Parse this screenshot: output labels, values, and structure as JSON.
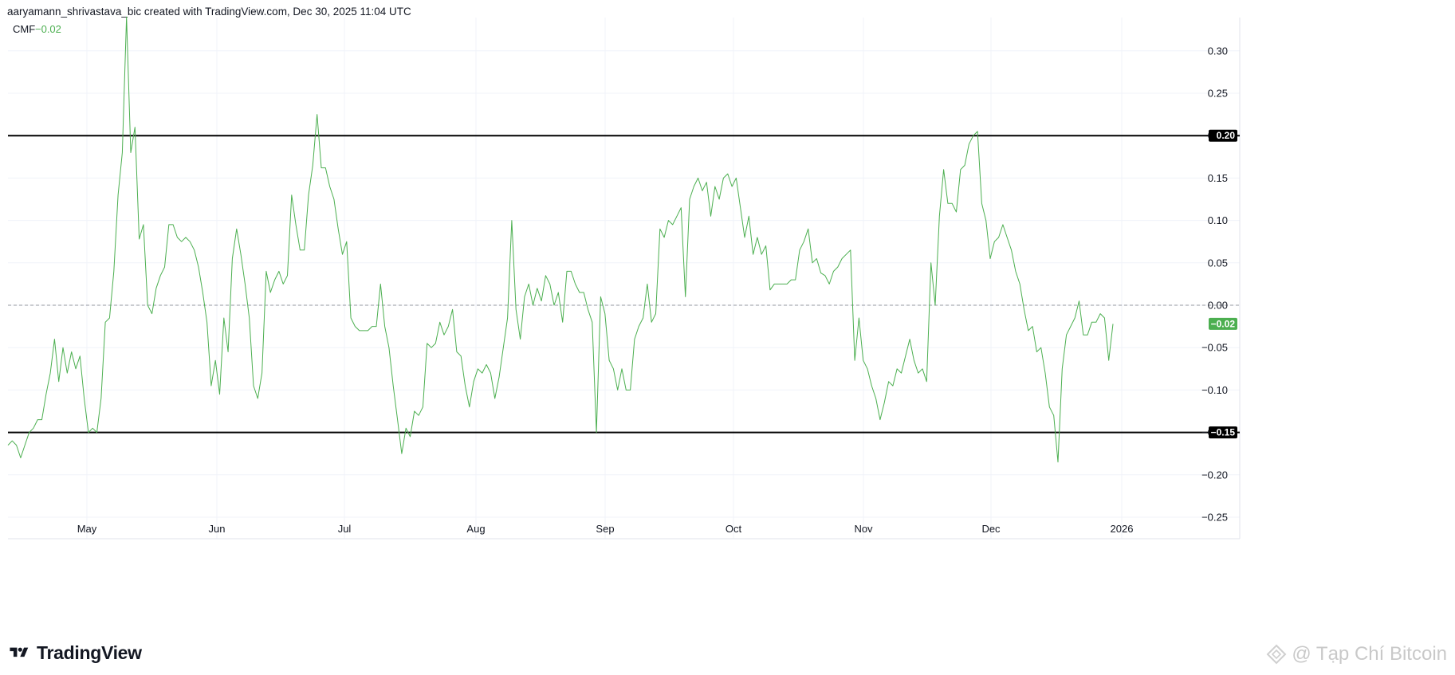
{
  "header": {
    "credit": "aaryamann_shrivastava_bic created with TradingView.com, Dec 30, 2025 11:04 UTC"
  },
  "legend": {
    "name": "CMF",
    "value": "−0.02"
  },
  "footer": {
    "brand": "TradingView",
    "watermark": "@ Tạp Chí Bitcoin"
  },
  "colors": {
    "line": "#4caf50",
    "level_line": "#000000",
    "zero_line": "#9598a1",
    "grid": "#f0f3fa",
    "current_tag": "#4caf50",
    "level_tag": "#000000"
  },
  "chart_data": {
    "type": "line",
    "series": [
      {
        "name": "CMF",
        "values": [
          -0.165,
          -0.16,
          -0.165,
          -0.18,
          -0.165,
          -0.15,
          -0.145,
          -0.135,
          -0.135,
          -0.105,
          -0.08,
          -0.04,
          -0.09,
          -0.05,
          -0.08,
          -0.055,
          -0.075,
          -0.06,
          -0.11,
          -0.15,
          -0.145,
          -0.15,
          -0.11,
          -0.02,
          -0.015,
          0.04,
          0.13,
          0.18,
          0.34,
          0.18,
          0.21,
          0.078,
          0.095,
          0.0,
          -0.01,
          0.02,
          0.035,
          0.045,
          0.095,
          0.095,
          0.08,
          0.075,
          0.08,
          0.075,
          0.065,
          0.045,
          0.015,
          -0.02,
          -0.095,
          -0.065,
          -0.105,
          -0.015,
          -0.055,
          0.055,
          0.09,
          0.06,
          0.025,
          -0.015,
          -0.095,
          -0.11,
          -0.08,
          0.04,
          0.015,
          0.03,
          0.04,
          0.025,
          0.035,
          0.13,
          0.095,
          0.065,
          0.065,
          0.13,
          0.165,
          0.225,
          0.162,
          0.162,
          0.14,
          0.125,
          0.09,
          0.06,
          0.075,
          -0.015,
          -0.025,
          -0.03,
          -0.03,
          -0.03,
          -0.025,
          -0.025,
          0.025,
          -0.025,
          -0.05,
          -0.095,
          -0.135,
          -0.175,
          -0.145,
          -0.155,
          -0.125,
          -0.13,
          -0.12,
          -0.045,
          -0.05,
          -0.045,
          -0.02,
          -0.035,
          -0.025,
          -0.005,
          -0.055,
          -0.06,
          -0.095,
          -0.12,
          -0.09,
          -0.075,
          -0.08,
          -0.07,
          -0.08,
          -0.11,
          -0.085,
          -0.05,
          -0.015,
          0.1,
          -0.005,
          -0.04,
          0.01,
          0.025,
          0.0,
          0.02,
          0.005,
          0.035,
          0.025,
          0.0,
          0.015,
          -0.02,
          0.04,
          0.04,
          0.025,
          0.015,
          0.015,
          -0.005,
          -0.02,
          -0.15,
          0.01,
          -0.01,
          -0.065,
          -0.075,
          -0.1,
          -0.075,
          -0.1,
          -0.1,
          -0.04,
          -0.025,
          -0.015,
          0.025,
          -0.02,
          -0.01,
          0.09,
          0.08,
          0.1,
          0.095,
          0.105,
          0.115,
          0.01,
          0.125,
          0.14,
          0.15,
          0.135,
          0.145,
          0.105,
          0.14,
          0.125,
          0.15,
          0.155,
          0.14,
          0.15,
          0.115,
          0.08,
          0.105,
          0.06,
          0.08,
          0.06,
          0.07,
          0.018,
          0.025,
          0.025,
          0.025,
          0.025,
          0.03,
          0.03,
          0.065,
          0.075,
          0.09,
          0.05,
          0.055,
          0.038,
          0.035,
          0.025,
          0.04,
          0.045,
          0.055,
          0.06,
          0.065,
          -0.065,
          -0.015,
          -0.065,
          -0.075,
          -0.095,
          -0.11,
          -0.135,
          -0.115,
          -0.09,
          -0.095,
          -0.075,
          -0.08,
          -0.06,
          -0.04,
          -0.065,
          -0.08,
          -0.075,
          -0.09,
          0.05,
          0.0,
          0.105,
          0.16,
          0.12,
          0.12,
          0.11,
          0.16,
          0.165,
          0.19,
          0.2,
          0.205,
          0.12,
          0.1,
          0.055,
          0.075,
          0.08,
          0.095,
          0.08,
          0.065,
          0.04,
          0.025,
          -0.005,
          -0.03,
          -0.025,
          -0.055,
          -0.05,
          -0.08,
          -0.12,
          -0.13,
          -0.185,
          -0.075,
          -0.035,
          -0.025,
          -0.015,
          0.005,
          -0.035,
          -0.035,
          -0.02,
          -0.02,
          -0.01,
          -0.015,
          -0.065,
          -0.022
        ]
      }
    ],
    "x_labels": [
      "May",
      "Jun",
      "Jul",
      "Aug",
      "Sep",
      "Oct",
      "Nov",
      "Dec",
      "2026"
    ],
    "ylim": [
      -0.25,
      0.33
    ],
    "y_ticks": [
      "0.30",
      "0.25",
      "0.20",
      "0.15",
      "0.10",
      "0.05",
      "0.00",
      "−0.05",
      "−0.10",
      "−0.15",
      "−0.20",
      "−0.25"
    ],
    "y_tick_values": [
      0.3,
      0.25,
      0.2,
      0.15,
      0.1,
      0.05,
      0.0,
      -0.05,
      -0.1,
      -0.15,
      -0.2,
      -0.25
    ],
    "levels": [
      {
        "value": 0.2,
        "label": "0.20"
      },
      {
        "value": -0.15,
        "label": "−0.15"
      }
    ],
    "zero_line": 0.0,
    "current": {
      "value": -0.022,
      "label": "−0.02"
    },
    "grid": true,
    "title": "",
    "xlabel": "",
    "ylabel": ""
  }
}
